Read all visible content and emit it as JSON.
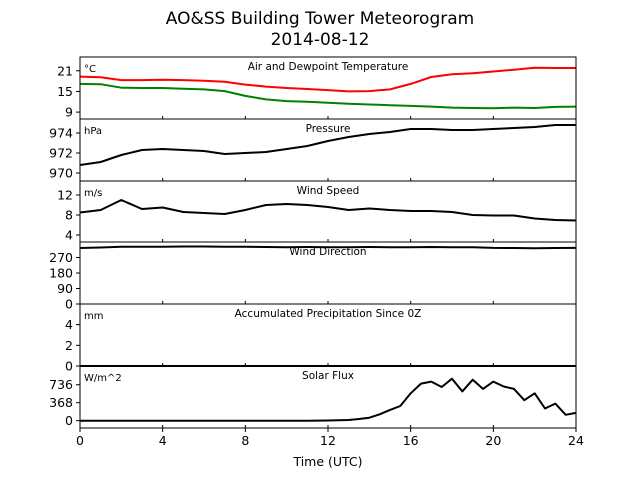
{
  "chart_data": {
    "type": "line",
    "title": "AO&SS Building Tower Meteorogram",
    "subtitle": "2014-08-12",
    "xlabel": "Time (UTC)",
    "xlim": [
      0,
      24
    ],
    "xticks": [
      0,
      4,
      8,
      12,
      16,
      20,
      24
    ],
    "grid": false,
    "panels": [
      {
        "id": "temperature",
        "label": "Air and Dewpoint Temperature",
        "unit": "°C",
        "ylim": [
          7,
          25
        ],
        "yticks": [
          9,
          15,
          21
        ],
        "series": [
          {
            "color": "#ff0000",
            "x": [
              0,
              1,
              2,
              3,
              4,
              5,
              6,
              7,
              8,
              9,
              10,
              11,
              12,
              13,
              14,
              15,
              16,
              17,
              18,
              19,
              20,
              21,
              22,
              23,
              24
            ],
            "values": [
              19.3,
              19.1,
              18.3,
              18.3,
              18.4,
              18.3,
              18.1,
              17.8,
              17.0,
              16.4,
              16.0,
              15.7,
              15.4,
              15.0,
              15.1,
              15.6,
              17.2,
              19.2,
              20.0,
              20.3,
              20.8,
              21.3,
              21.9,
              21.8,
              21.8
            ]
          },
          {
            "color": "#008000",
            "x": [
              0,
              1,
              2,
              3,
              4,
              5,
              6,
              7,
              8,
              9,
              10,
              11,
              12,
              13,
              14,
              15,
              16,
              17,
              18,
              19,
              20,
              21,
              22,
              23,
              24
            ],
            "values": [
              17.2,
              17.1,
              16.1,
              16.0,
              16.0,
              15.8,
              15.6,
              15.1,
              13.7,
              12.7,
              12.2,
              12.0,
              11.7,
              11.4,
              11.2,
              11.0,
              10.8,
              10.6,
              10.3,
              10.2,
              10.1,
              10.3,
              10.2,
              10.5,
              10.6
            ]
          }
        ]
      },
      {
        "id": "pressure",
        "label": "Pressure",
        "unit": "hPa",
        "ylim": [
          969.2,
          975.4
        ],
        "yticks": [
          970,
          972,
          974
        ],
        "series": [
          {
            "color": "#000000",
            "x": [
              0,
              1,
              2,
              3,
              4,
              5,
              6,
              7,
              8,
              9,
              10,
              11,
              12,
              13,
              14,
              15,
              16,
              17,
              18,
              19,
              20,
              21,
              22,
              23,
              24
            ],
            "values": [
              970.8,
              971.1,
              971.8,
              972.3,
              972.4,
              972.3,
              972.2,
              971.9,
              972.0,
              972.1,
              972.4,
              972.7,
              973.2,
              973.6,
              973.9,
              974.1,
              974.4,
              974.4,
              974.3,
              974.3,
              974.4,
              974.5,
              974.6,
              974.8,
              974.8
            ]
          }
        ]
      },
      {
        "id": "wind_speed",
        "label": "Wind Speed",
        "unit": "m/s",
        "ylim": [
          2.6,
          14.8
        ],
        "yticks": [
          4,
          8,
          12
        ],
        "series": [
          {
            "color": "#000000",
            "x": [
              0,
              1,
              2,
              3,
              4,
              5,
              6,
              7,
              8,
              9,
              10,
              11,
              12,
              13,
              14,
              15,
              16,
              17,
              18,
              19,
              20,
              21,
              22,
              23,
              24
            ],
            "values": [
              8.5,
              9.0,
              11.0,
              9.2,
              9.5,
              8.6,
              8.4,
              8.2,
              9.0,
              10.0,
              10.2,
              10.0,
              9.6,
              9.0,
              9.3,
              9.0,
              8.8,
              8.8,
              8.6,
              8.0,
              7.9,
              7.9,
              7.3,
              7.0,
              6.9
            ]
          }
        ]
      },
      {
        "id": "wind_direction",
        "label": "Wind Direction",
        "ylim": [
          0,
          360
        ],
        "yticks": [
          0,
          90,
          180,
          270
        ],
        "series": [
          {
            "color": "#000000",
            "x": [
              0,
              1,
              2,
              3,
              4,
              5,
              6,
              7,
              8,
              9,
              10,
              11,
              12,
              13,
              14,
              15,
              16,
              17,
              18,
              19,
              20,
              21,
              22,
              23,
              24
            ],
            "values": [
              325,
              328,
              332,
              333,
              333,
              334,
              334,
              333,
              332,
              331,
              330,
              331,
              330,
              330,
              331,
              330,
              329,
              331,
              330,
              330,
              326,
              325,
              324,
              325,
              326
            ]
          }
        ]
      },
      {
        "id": "precipitation",
        "label": "Accumulated Precipitation Since 0Z",
        "unit": "mm",
        "ylim": [
          0,
          6
        ],
        "yticks": [
          0,
          2,
          4
        ],
        "series": [
          {
            "color": "#000000",
            "x": [
              0,
              24
            ],
            "values": [
              0,
              0
            ]
          }
        ]
      },
      {
        "id": "solar_flux",
        "label": "Solar Flux",
        "unit": "W/m^2",
        "ylim": [
          -150,
          1120
        ],
        "yticks": [
          0,
          368,
          736
        ],
        "series": [
          {
            "color": "#000000",
            "x": [
              0,
              1,
              2,
              3,
              4,
              5,
              6,
              7,
              8,
              9,
              10,
              11,
              12,
              12.5,
              13,
              13.5,
              14,
              14.5,
              15,
              15.5,
              16,
              16.5,
              17,
              17.5,
              18,
              18.5,
              19,
              19.5,
              20,
              20.5,
              21,
              21.5,
              22,
              22.5,
              23,
              23.5,
              24
            ],
            "values": [
              0,
              0,
              0,
              0,
              0,
              0,
              0,
              0,
              0,
              0,
              0,
              0,
              4,
              8,
              14,
              35,
              60,
              130,
              220,
              300,
              560,
              760,
              800,
              690,
              860,
              600,
              840,
              650,
              800,
              700,
              650,
              420,
              560,
              250,
              350,
              120,
              160
            ]
          }
        ]
      }
    ]
  }
}
